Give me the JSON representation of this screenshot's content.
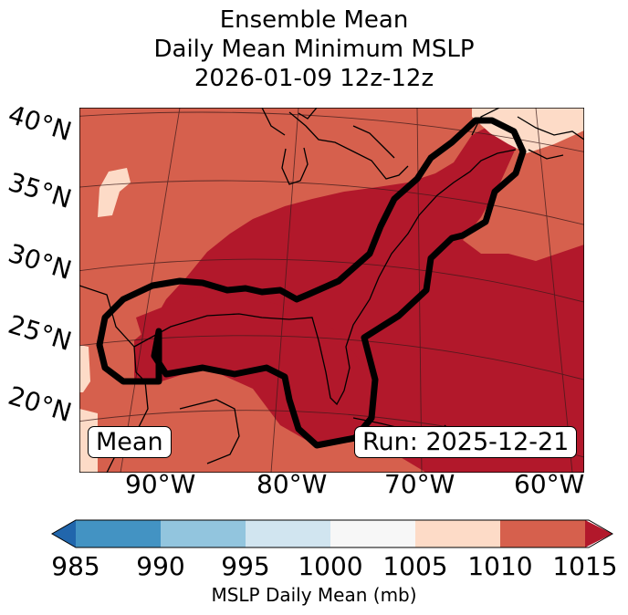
{
  "title": {
    "line1": "Ensemble Mean",
    "line2": "Daily Mean Minimum MSLP",
    "line3": "2026-01-09 12z-12z"
  },
  "map": {
    "lat_labels": [
      "40°N",
      "35°N",
      "30°N",
      "25°N",
      "20°N"
    ],
    "lon_labels": [
      "90°W",
      "80°W",
      "70°W",
      "60°W"
    ],
    "left_box": "Mean",
    "right_box": "Run: 2025-12-21",
    "fill_colors": {
      "band_1005_1010": "#fddbc7",
      "band_1010_1015": "#d6604d",
      "band_above_1015": "#b2182b"
    },
    "contour_color": "#000000"
  },
  "colorbar": {
    "ticks": [
      "985",
      "990",
      "995",
      "1000",
      "1005",
      "1010",
      "1015"
    ],
    "label": "MSLP Daily Mean (mb)",
    "colors": [
      "#2166ac",
      "#4393c3",
      "#92c5de",
      "#d1e5f0",
      "#f7f7f7",
      "#fddbc7",
      "#d6604d",
      "#b2182b"
    ],
    "extend": "both"
  }
}
